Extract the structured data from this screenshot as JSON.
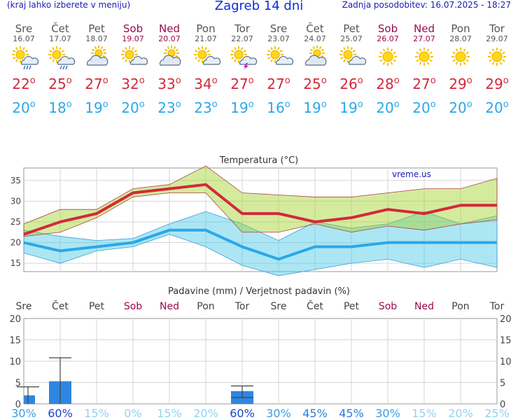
{
  "header": {
    "menu_hint": "(kraj lahko izberete v meniju)",
    "title": "Zagreb 14 dni",
    "updated": "Zadnja posodobitev: 16.07.2025 - 18:27"
  },
  "colors": {
    "hi": "#d4283a",
    "lo": "#2aa8e8",
    "weekend": "#9c0a4c",
    "bar": "#2f86e0"
  },
  "days": [
    {
      "name": "Sre",
      "date": "16.07",
      "weekend": false,
      "icon": "sun-cloud-rain-icon",
      "hi": "22",
      "lo": "20"
    },
    {
      "name": "Čet",
      "date": "17.07",
      "weekend": false,
      "icon": "sun-cloud-rain-icon",
      "hi": "25",
      "lo": "18"
    },
    {
      "name": "Pet",
      "date": "18.07",
      "weekend": false,
      "icon": "cloud-sun-icon",
      "hi": "27",
      "lo": "19"
    },
    {
      "name": "Sob",
      "date": "19.07",
      "weekend": true,
      "icon": "sun-cloud-icon",
      "hi": "32",
      "lo": "20"
    },
    {
      "name": "Ned",
      "date": "20.07",
      "weekend": true,
      "icon": "cloud-sun-icon",
      "hi": "33",
      "lo": "23"
    },
    {
      "name": "Pon",
      "date": "21.07",
      "weekend": false,
      "icon": "sun-cloud-icon",
      "hi": "34",
      "lo": "23"
    },
    {
      "name": "Tor",
      "date": "22.07",
      "weekend": false,
      "icon": "sun-cloud-storm-icon",
      "hi": "27",
      "lo": "19"
    },
    {
      "name": "Sre",
      "date": "23.07",
      "weekend": false,
      "icon": "sun-cloud-icon",
      "hi": "27",
      "lo": "16"
    },
    {
      "name": "Čet",
      "date": "24.07",
      "weekend": false,
      "icon": "cloud-sun-icon",
      "hi": "25",
      "lo": "19"
    },
    {
      "name": "Pet",
      "date": "25.07",
      "weekend": false,
      "icon": "sun-cloud-icon",
      "hi": "26",
      "lo": "19"
    },
    {
      "name": "Sob",
      "date": "26.07",
      "weekend": true,
      "icon": "sun-icon",
      "hi": "28",
      "lo": "20"
    },
    {
      "name": "Ned",
      "date": "27.07",
      "weekend": true,
      "icon": "sun-icon",
      "hi": "27",
      "lo": "20"
    },
    {
      "name": "Pon",
      "date": "28.07",
      "weekend": false,
      "icon": "sun-icon",
      "hi": "29",
      "lo": "20"
    },
    {
      "name": "Tor",
      "date": "29.07",
      "weekend": false,
      "icon": "sun-icon",
      "hi": "29",
      "lo": "20"
    }
  ],
  "chart_data": [
    {
      "type": "line",
      "title": "Temperatura (°C)",
      "watermark": "vreme.us",
      "x": [
        "Sre",
        "Čet",
        "Pet",
        "Sob",
        "Ned",
        "Pon",
        "Tor",
        "Sre",
        "Čet",
        "Pet",
        "Sob",
        "Ned",
        "Pon",
        "Tor"
      ],
      "ylim": [
        13,
        38
      ],
      "yticks": [
        15,
        20,
        25,
        30,
        35
      ],
      "grid": true,
      "series": [
        {
          "role": "max",
          "values": [
            22,
            25,
            27,
            32,
            33,
            34,
            27,
            27,
            25,
            26,
            28,
            27,
            29,
            29
          ]
        },
        {
          "role": "min",
          "values": [
            20,
            18,
            19,
            20,
            23,
            23,
            19,
            16,
            19,
            19,
            20,
            20,
            20,
            20
          ]
        },
        {
          "role": "max-range-upper",
          "values": [
            24.5,
            28,
            28,
            33,
            34,
            38.5,
            32,
            31.5,
            31,
            31,
            32,
            33,
            33,
            35.5
          ]
        },
        {
          "role": "max-range-lower",
          "values": [
            21.5,
            22.5,
            26,
            31,
            32,
            32,
            22.5,
            22.5,
            24.5,
            22.5,
            24,
            23,
            24.5,
            25.5
          ]
        },
        {
          "role": "min-range-upper",
          "values": [
            23,
            21.5,
            20.5,
            21,
            24.5,
            27.5,
            24.5,
            20.5,
            25,
            23.5,
            24.5,
            27.5,
            24.5,
            26.5
          ]
        },
        {
          "role": "min-range-lower",
          "values": [
            17.5,
            15,
            18,
            19,
            22,
            19,
            14.5,
            12,
            13.5,
            15,
            16,
            14,
            16,
            14
          ]
        }
      ]
    },
    {
      "type": "bar",
      "title": "Padavine (mm) / Verjetnost padavin (%)",
      "categories": [
        "Sre",
        "Čet",
        "Pet",
        "Sob",
        "Ned",
        "Pon",
        "Tor",
        "Sre",
        "Čet",
        "Pet",
        "Sob",
        "Ned",
        "Pon",
        "Tor"
      ],
      "ylim": [
        0,
        20
      ],
      "yticks": [
        0,
        5,
        10,
        15,
        20
      ],
      "grid": true,
      "values": [
        2,
        5.3,
        0,
        0,
        0,
        0,
        3,
        0,
        0,
        0,
        0,
        0,
        0,
        0
      ],
      "error_max": [
        4,
        10.8,
        0,
        0,
        0,
        0,
        4.2,
        0,
        0,
        0,
        0,
        0,
        0,
        0
      ],
      "error_min": [
        0,
        0,
        0,
        0,
        0,
        0,
        1.5,
        0,
        0,
        0,
        0,
        0,
        0,
        0
      ],
      "probability": [
        "30%",
        "60%",
        "15%",
        "0%",
        "15%",
        "20%",
        "60%",
        "30%",
        "45%",
        "45%",
        "30%",
        "15%",
        "20%",
        "25%"
      ]
    }
  ]
}
